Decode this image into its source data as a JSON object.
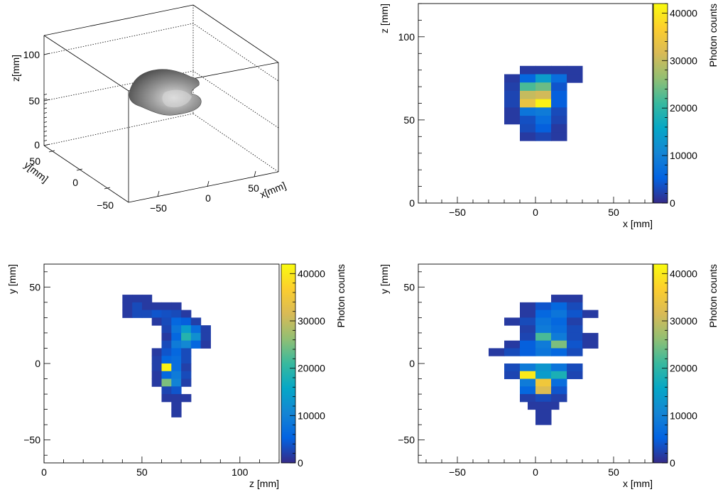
{
  "colorbar": {
    "label": "Photon counts",
    "ticks": [
      0,
      10000,
      20000,
      30000,
      40000
    ],
    "tick_labels": [
      "0",
      "10000",
      "20000",
      "30000",
      "40000"
    ],
    "max": 42000,
    "palette": [
      "#352a87",
      "#0363e1",
      "#1485d4",
      "#06a7c6",
      "#38b99e",
      "#92bf73",
      "#d9ba56",
      "#fcce2e",
      "#f9fb0e"
    ]
  },
  "chart_data": [
    {
      "type": "surface3d",
      "xlabel": "x[mm]",
      "ylabel": "y[mm]",
      "zlabel": "z[mm]",
      "x_ticks": [
        "−50",
        "0",
        "50"
      ],
      "y_ticks": [
        "50",
        "0",
        "−50"
      ],
      "z_ticks": [
        "0",
        "50",
        "100"
      ],
      "xlim": [
        -75,
        75
      ],
      "ylim": [
        -65,
        65
      ],
      "zlim": [
        0,
        120
      ],
      "surface_color": "gray"
    },
    {
      "type": "heatmap",
      "xlabel": "x [mm]",
      "ylabel": "z [mm]",
      "xlim": [
        -75,
        75
      ],
      "ylim": [
        0,
        120
      ],
      "x_ticks": [
        -50,
        0,
        50
      ],
      "y_ticks": [
        0,
        50,
        100
      ],
      "x_tick_labels": [
        "−50",
        "0",
        "50"
      ],
      "y_tick_labels": [
        "0",
        "50",
        "100"
      ],
      "bin_size": 10,
      "cells": [
        [
          -5,
          80,
          1500
        ],
        [
          5,
          80,
          1500
        ],
        [
          15,
          80,
          1500
        ],
        [
          25,
          80,
          1500
        ],
        [
          -15,
          75,
          1500
        ],
        [
          -5,
          75,
          6000
        ],
        [
          5,
          75,
          14000
        ],
        [
          15,
          75,
          7000
        ],
        [
          25,
          75,
          1500
        ],
        [
          -15,
          70,
          2000
        ],
        [
          -5,
          70,
          22000
        ],
        [
          5,
          70,
          24000
        ],
        [
          15,
          70,
          4000
        ],
        [
          -15,
          65,
          2500
        ],
        [
          -5,
          65,
          30000
        ],
        [
          5,
          65,
          31000
        ],
        [
          15,
          65,
          5000
        ],
        [
          -15,
          60,
          2500
        ],
        [
          -5,
          60,
          34000
        ],
        [
          5,
          60,
          41000
        ],
        [
          15,
          60,
          5000
        ],
        [
          -15,
          55,
          1500
        ],
        [
          -5,
          55,
          8000
        ],
        [
          5,
          55,
          9000
        ],
        [
          15,
          55,
          3000
        ],
        [
          -15,
          50,
          1500
        ],
        [
          -5,
          50,
          3500
        ],
        [
          5,
          50,
          7000
        ],
        [
          15,
          50,
          2500
        ],
        [
          -5,
          45,
          3000
        ],
        [
          5,
          45,
          5000
        ],
        [
          15,
          45,
          1500
        ],
        [
          -5,
          40,
          1500
        ],
        [
          5,
          40,
          2500
        ],
        [
          15,
          40,
          1500
        ]
      ]
    },
    {
      "type": "heatmap",
      "xlabel": "z [mm]",
      "ylabel": "y [mm]",
      "xlim": [
        0,
        120
      ],
      "ylim": [
        -65,
        65
      ],
      "x_ticks": [
        0,
        50,
        100
      ],
      "y_ticks": [
        -50,
        0,
        50
      ],
      "x_tick_labels": [
        "0",
        "50",
        "100"
      ],
      "y_tick_labels": [
        "−50",
        "0",
        "50"
      ],
      "bin_size": 5,
      "cells": [
        [
          42.5,
          42.5,
          1500
        ],
        [
          47.5,
          42.5,
          1500
        ],
        [
          52.5,
          42.5,
          1500
        ],
        [
          42.5,
          37.5,
          1500
        ],
        [
          47.5,
          37.5,
          3000
        ],
        [
          52.5,
          37.5,
          1500
        ],
        [
          57.5,
          37.5,
          1500
        ],
        [
          62.5,
          37.5,
          1500
        ],
        [
          67.5,
          37.5,
          1500
        ],
        [
          42.5,
          32.5,
          1500
        ],
        [
          47.5,
          32.5,
          3000
        ],
        [
          52.5,
          32.5,
          3000
        ],
        [
          57.5,
          32.5,
          4000
        ],
        [
          62.5,
          32.5,
          3500
        ],
        [
          67.5,
          32.5,
          3000
        ],
        [
          72.5,
          32.5,
          1500
        ],
        [
          57.5,
          27.5,
          1500
        ],
        [
          62.5,
          27.5,
          3000
        ],
        [
          67.5,
          27.5,
          6000
        ],
        [
          72.5,
          27.5,
          5000
        ],
        [
          77.5,
          27.5,
          2000
        ],
        [
          62.5,
          22.5,
          2500
        ],
        [
          67.5,
          22.5,
          8000
        ],
        [
          72.5,
          22.5,
          14000
        ],
        [
          77.5,
          22.5,
          7000
        ],
        [
          82.5,
          22.5,
          2000
        ],
        [
          62.5,
          17.5,
          1500
        ],
        [
          67.5,
          17.5,
          6000
        ],
        [
          72.5,
          17.5,
          19000
        ],
        [
          77.5,
          17.5,
          12000
        ],
        [
          82.5,
          17.5,
          2000
        ],
        [
          62.5,
          12.5,
          3000
        ],
        [
          67.5,
          12.5,
          9000
        ],
        [
          72.5,
          12.5,
          11000
        ],
        [
          77.5,
          12.5,
          6000
        ],
        [
          82.5,
          12.5,
          1500
        ],
        [
          57.5,
          7.5,
          1500
        ],
        [
          62.5,
          7.5,
          4000
        ],
        [
          67.5,
          7.5,
          6000
        ],
        [
          72.5,
          7.5,
          3000
        ],
        [
          57.5,
          2.5,
          2000
        ],
        [
          62.5,
          2.5,
          6000
        ],
        [
          67.5,
          2.5,
          7000
        ],
        [
          72.5,
          2.5,
          3000
        ],
        [
          57.5,
          -2.5,
          2000
        ],
        [
          62.5,
          -2.5,
          41000
        ],
        [
          67.5,
          -2.5,
          7000
        ],
        [
          72.5,
          -2.5,
          2000
        ],
        [
          57.5,
          -7.5,
          1500
        ],
        [
          62.5,
          -7.5,
          6000
        ],
        [
          67.5,
          -7.5,
          9000
        ],
        [
          72.5,
          -7.5,
          3000
        ],
        [
          57.5,
          -12.5,
          1500
        ],
        [
          62.5,
          -12.5,
          25000
        ],
        [
          67.5,
          -12.5,
          10000
        ],
        [
          72.5,
          -12.5,
          2000
        ],
        [
          62.5,
          -17.5,
          2500
        ],
        [
          67.5,
          -17.5,
          4000
        ],
        [
          62.5,
          -22.5,
          1500
        ],
        [
          67.5,
          -22.5,
          1500
        ],
        [
          72.5,
          -22.5,
          1500
        ],
        [
          67.5,
          -27.5,
          1500
        ],
        [
          67.5,
          -32.5,
          1500
        ]
      ]
    },
    {
      "type": "heatmap",
      "xlabel": "x [mm]",
      "ylabel": "y [mm]",
      "xlim": [
        -75,
        75
      ],
      "ylim": [
        -65,
        65
      ],
      "x_ticks": [
        -50,
        0,
        50
      ],
      "y_ticks": [
        -50,
        0,
        50
      ],
      "x_tick_labels": [
        "−50",
        "0",
        "50"
      ],
      "y_tick_labels": [
        "−50",
        "0",
        "50"
      ],
      "bin_size": 10,
      "cells": [
        [
          15,
          42.5,
          1500
        ],
        [
          25,
          42.5,
          1500
        ],
        [
          -5,
          37.5,
          1500
        ],
        [
          5,
          37.5,
          4000
        ],
        [
          15,
          37.5,
          6000
        ],
        [
          25,
          37.5,
          3000
        ],
        [
          -5,
          32.5,
          1500
        ],
        [
          5,
          32.5,
          6000
        ],
        [
          15,
          32.5,
          8000
        ],
        [
          25,
          32.5,
          4000
        ],
        [
          35,
          32.5,
          1500
        ],
        [
          -15,
          27.5,
          1500
        ],
        [
          -5,
          27.5,
          3000
        ],
        [
          5,
          27.5,
          8000
        ],
        [
          15,
          27.5,
          6000
        ],
        [
          25,
          27.5,
          2000
        ],
        [
          -5,
          22.5,
          2000
        ],
        [
          5,
          22.5,
          9000
        ],
        [
          15,
          22.5,
          7000
        ],
        [
          25,
          22.5,
          3000
        ],
        [
          -5,
          17.5,
          2500
        ],
        [
          5,
          17.5,
          22000
        ],
        [
          15,
          17.5,
          9000
        ],
        [
          25,
          17.5,
          3000
        ],
        [
          35,
          17.5,
          1500
        ],
        [
          -15,
          12.5,
          1500
        ],
        [
          -5,
          12.5,
          5000
        ],
        [
          5,
          12.5,
          9000
        ],
        [
          15,
          12.5,
          25000
        ],
        [
          25,
          12.5,
          4000
        ],
        [
          35,
          12.5,
          1500
        ],
        [
          -25,
          7.5,
          1500
        ],
        [
          -15,
          7.5,
          3000
        ],
        [
          -5,
          7.5,
          5000
        ],
        [
          5,
          7.5,
          8000
        ],
        [
          15,
          7.5,
          6000
        ],
        [
          25,
          7.5,
          3000
        ],
        [
          -15,
          -2.5,
          3000
        ],
        [
          -5,
          -2.5,
          9000
        ],
        [
          5,
          -2.5,
          13000
        ],
        [
          15,
          -2.5,
          8000
        ],
        [
          25,
          -2.5,
          3000
        ],
        [
          -15,
          -7.5,
          2500
        ],
        [
          -5,
          -7.5,
          40000
        ],
        [
          5,
          -7.5,
          14000
        ],
        [
          15,
          -7.5,
          18000
        ],
        [
          25,
          -7.5,
          2500
        ],
        [
          -5,
          -12.5,
          9000
        ],
        [
          5,
          -12.5,
          35000
        ],
        [
          15,
          -12.5,
          7000
        ],
        [
          -5,
          -17.5,
          6000
        ],
        [
          5,
          -17.5,
          32000
        ],
        [
          15,
          -17.5,
          4000
        ],
        [
          -5,
          -22.5,
          2000
        ],
        [
          5,
          -22.5,
          3000
        ],
        [
          15,
          -22.5,
          2000
        ],
        [
          0,
          -27.5,
          1500
        ],
        [
          10,
          -27.5,
          1500
        ],
        [
          5,
          -32.5,
          1500
        ],
        [
          5,
          -37.5,
          1500
        ]
      ]
    }
  ]
}
